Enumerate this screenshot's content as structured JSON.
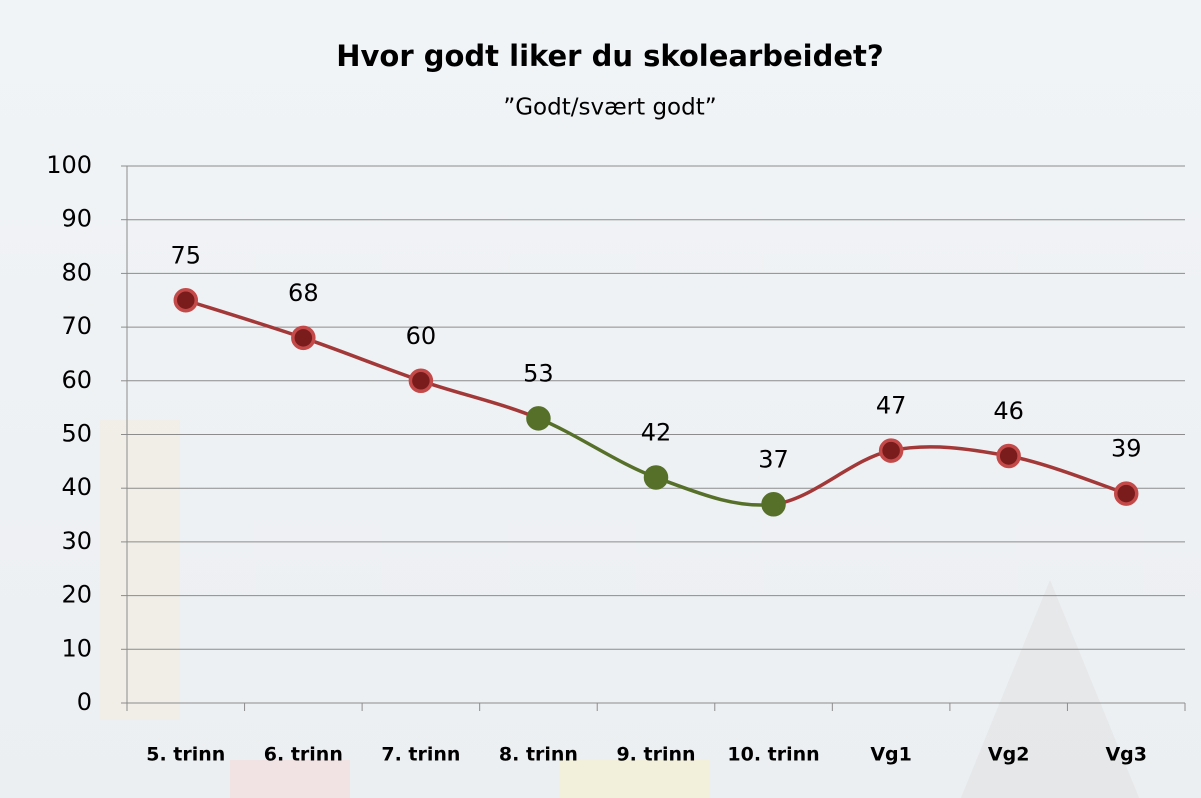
{
  "chart_data": {
    "type": "line",
    "title": "Hvor godt liker du skolearbeidet?",
    "subtitle": "”Godt/svært godt”",
    "categories": [
      "5. trinn",
      "6. trinn",
      "7. trinn",
      "8. trinn",
      "9. trinn",
      "10. trinn",
      "Vg1",
      "Vg2",
      "Vg3"
    ],
    "series": [
      {
        "values": [
          75,
          68,
          60,
          53,
          42,
          37,
          47,
          46,
          39
        ],
        "color": "#a33838",
        "point_colors": [
          "#a33838",
          "#a33838",
          "#a33838",
          "#56702a",
          "#56702a",
          "#56702a",
          "#a33838",
          "#a33838",
          "#a33838"
        ]
      }
    ],
    "ylim": [
      0,
      100
    ],
    "yticks": [
      0,
      10,
      20,
      30,
      40,
      50,
      60,
      70,
      80,
      90,
      100
    ],
    "grid": true,
    "smooth": true
  }
}
